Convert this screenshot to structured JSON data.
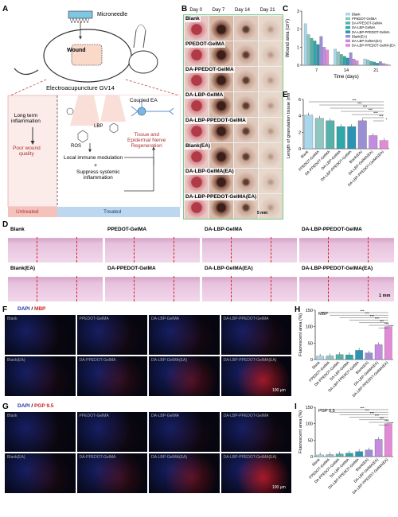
{
  "panels": {
    "A": "A",
    "B": "B",
    "C": "C",
    "D": "D",
    "E": "E",
    "F": "F",
    "G": "G",
    "H": "H",
    "I": "I"
  },
  "panelA": {
    "microneedle": "Microneedle",
    "wound": "Wound",
    "ea_title": "Electroacupuncture GV14",
    "coupled": "Coupled EA",
    "long_term": "Long term\ninflammation",
    "poor": "Poor wound\nquality",
    "ros": "ROS",
    "lbp": "LBP",
    "local": "Local immune modulation",
    "plus": "+",
    "suppress": "Suppress systemic\ninflammation",
    "tissue": "Tissue and\nEpidermal Nerve\nRegeneration",
    "untreated": "Untreated",
    "treated": "Treated"
  },
  "panelB": {
    "days": [
      "Day 0",
      "Day 7",
      "Day 14",
      "Day 21"
    ],
    "groups": [
      "Blank",
      "PPEDOT-GelMA",
      "DA-PPEDOT-GelMA",
      "DA-LBP-GelMA",
      "DA-LBP-PPEDOT-GelMA",
      "Blank(EA)",
      "DA-LBP-GelMA(EA)",
      "DA-LBP-PPEDOT-GelMA(EA)"
    ],
    "scale": "5 mm"
  },
  "panelD": {
    "rows": [
      [
        "Blank",
        "PPEDOT-GelMA",
        "DA-LBP-GelMA",
        "DA-LBP-PPEDOT-GelMA"
      ],
      [
        "Blank(EA)",
        "DA-PPEDOT-GelMA",
        "DA-LBP-GelMA(EA)",
        "DA-LBP-PPEDOT-GelMA(EA)"
      ]
    ],
    "scale": "1 mm"
  },
  "panelF": {
    "stain_dapi": "DAPI",
    "stain_sep": " / ",
    "stain": "MBP",
    "rows": [
      [
        "Blank",
        "PPEDOT-GelMA",
        "DA-LBP-GelMA",
        "DA-LBP-PPEDOT-GelMA"
      ],
      [
        "Blank(EA)",
        "DA-PPEDOT-GelMA",
        "DA-LBP-GelMA(EA)",
        "DA-LBP-PPEDOT-GelMA(EA)"
      ]
    ],
    "scale": "100 μm"
  },
  "panelG": {
    "stain_dapi": "DAPI",
    "stain_sep": " / ",
    "stain": "PGP 9.5",
    "rows": [
      [
        "Blank",
        "PPEDOT-GelMA",
        "DA-LBP-GelMA",
        "DA-LBP-PPEDOT-GelMA"
      ],
      [
        "Blank(EA)",
        "DA-PPEDOT-GelMA",
        "DA-LBP-GelMA(EA)",
        "DA-LBP-PPEDOT-GelMA(EA)"
      ]
    ],
    "scale": "100 μm"
  },
  "colors": {
    "blank": "#a9d7ec",
    "ppedot": "#8ec6c2",
    "dappedot": "#55b1a9",
    "dalbp": "#2fa6a8",
    "dalbpppedot": "#2c93b5",
    "blankEA": "#9b8fd4",
    "dalbpEA": "#c38ce0",
    "dalbpppedotEA": "#e38ad6"
  },
  "chart_data": [
    {
      "id": "C",
      "type": "bar",
      "ylabel": "Wound area (cm²)",
      "xlabel": "Time (days)",
      "categories": [
        "7",
        "14",
        "21"
      ],
      "ylim": [
        0,
        3
      ],
      "yticks": [
        "0",
        "1",
        "2",
        "3"
      ],
      "series": [
        {
          "name": "Blank",
          "values": [
            2.3,
            0.9,
            0.35
          ]
        },
        {
          "name": "PPEDOT-GelMA",
          "values": [
            1.7,
            0.75,
            0.3
          ]
        },
        {
          "name": "DA-PPEDOT-GelMA",
          "values": [
            1.5,
            0.6,
            0.22
          ]
        },
        {
          "name": "DA-LBP-GelMA",
          "values": [
            1.35,
            0.5,
            0.18
          ]
        },
        {
          "name": "DA-LBP-PPEDOT-GelMA",
          "values": [
            1.15,
            0.4,
            0.12
          ]
        },
        {
          "name": "Blank(EA)",
          "values": [
            1.6,
            0.7,
            0.2
          ]
        },
        {
          "name": "DA-LBP-GelMA(EA)",
          "values": [
            1.0,
            0.35,
            0.1
          ]
        },
        {
          "name": "DA-LBP-PPEDOT-GelMA(EA)",
          "values": [
            0.85,
            0.25,
            0.05
          ]
        }
      ]
    },
    {
      "id": "E",
      "type": "bar",
      "ylabel": "Length of granulation tissue (mm)",
      "categories": [
        "Blank",
        "PPEDOT-GelMA",
        "DA-PPEDOT-GelMA",
        "DA-LBP-GelMA",
        "DA-LBP-PPEDOT-GelMA",
        "Blank(EA)",
        "DA-LBP-GelMA(EA)",
        "DA-LBP-PPEDOT-GelMA(EA)"
      ],
      "values": [
        4.1,
        3.7,
        3.4,
        2.7,
        2.7,
        3.4,
        1.6,
        1.0
      ],
      "ylim": [
        0,
        6
      ],
      "yticks": [
        "0",
        "2",
        "4",
        "6"
      ],
      "sig": [
        "***",
        "***",
        "***",
        "***",
        "***",
        "***",
        "*"
      ]
    },
    {
      "id": "H",
      "type": "bar",
      "ylabel": "Fluorescent area (%)",
      "inset": "MBP",
      "categories": [
        "Blank",
        "PPEDOT-GelMA",
        "DA-PPEDOT-GelMA",
        "DA-LBP-GelMA",
        "DA-LBP-PPEDOT-GelMA",
        "Blank(EA)",
        "DA-LBP-GelMA(EA)",
        "DA-LBP-PPEDOT-GelMA(EA)"
      ],
      "values": [
        10,
        11,
        15,
        14,
        28,
        20,
        45,
        100
      ],
      "ylim": [
        0,
        150
      ],
      "yticks": [
        "0",
        "50",
        "100",
        "150"
      ],
      "sig": [
        "***",
        "***",
        "***",
        "***",
        "***",
        "***",
        "***"
      ]
    },
    {
      "id": "I",
      "type": "bar",
      "ylabel": "Fluorescent area (%)",
      "inset": "PGP 9.5",
      "categories": [
        "Blank",
        "PPEDOT-GelMA",
        "DA-PPEDOT-GelMA",
        "DA-LBP-GelMA",
        "DA-LBP-PPEDOT-GelMA",
        "Blank(EA)",
        "DA-LBP-GelMA(EA)",
        "DA-LBP-PPEDOT-GelMA(EA)"
      ],
      "values": [
        5,
        6,
        8,
        10,
        15,
        20,
        52,
        100
      ],
      "ylim": [
        0,
        150
      ],
      "yticks": [
        "0",
        "50",
        "100",
        "150"
      ],
      "sig": [
        "***",
        "***",
        "***",
        "***",
        "***",
        "***",
        "***"
      ]
    }
  ]
}
